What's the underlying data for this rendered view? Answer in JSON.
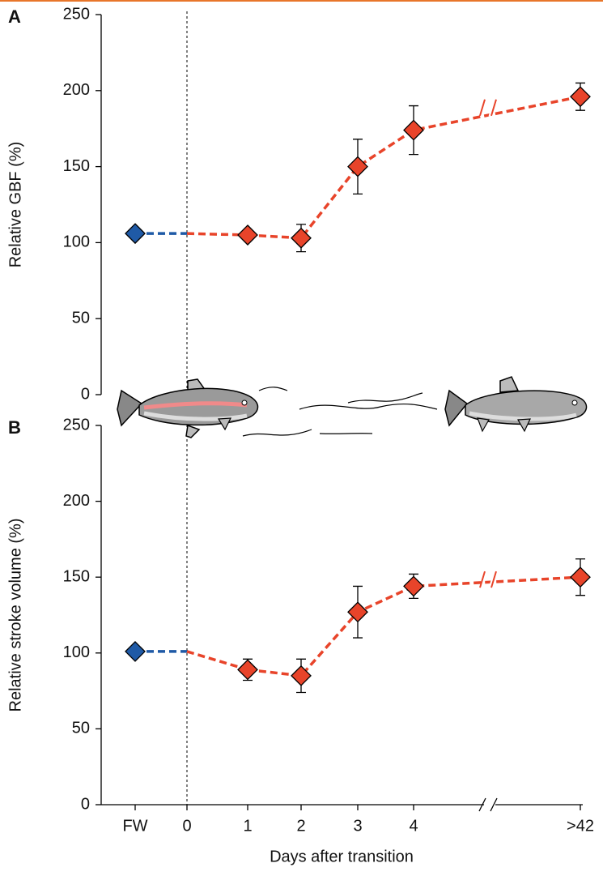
{
  "chart_data": [
    {
      "type": "line",
      "label": "A",
      "ylabel": "Relative GBF (%)",
      "ylim": [
        0,
        250
      ],
      "yticks": [
        0,
        50,
        100,
        150,
        200,
        250
      ],
      "series": [
        {
          "color": "#1f5aa6",
          "values": [
            106,
            null,
            null,
            null,
            null,
            null,
            null
          ],
          "errors": [
            null,
            null,
            null,
            null,
            null,
            null,
            null
          ]
        },
        {
          "color": "#e8442a",
          "values": [
            null,
            null,
            105,
            103,
            150,
            174,
            196
          ],
          "errors": [
            null,
            null,
            3,
            9,
            18,
            16,
            9
          ]
        }
      ]
    },
    {
      "type": "line",
      "label": "B",
      "ylabel": "Relative stroke volume (%)",
      "xlabel": "Days after transition",
      "categories": [
        "FW",
        "0",
        "1",
        "2",
        "3",
        "4",
        ">42"
      ],
      "ylim": [
        0,
        250
      ],
      "yticks": [
        0,
        50,
        100,
        150,
        200,
        250
      ],
      "series": [
        {
          "color": "#1f5aa6",
          "values": [
            101,
            null,
            null,
            null,
            null,
            null,
            null
          ],
          "errors": [
            null,
            null,
            null,
            null,
            null,
            null,
            null
          ]
        },
        {
          "color": "#e8442a",
          "values": [
            null,
            null,
            89,
            85,
            127,
            144,
            150
          ],
          "errors": [
            null,
            null,
            7,
            11,
            17,
            8,
            12
          ]
        }
      ]
    }
  ]
}
